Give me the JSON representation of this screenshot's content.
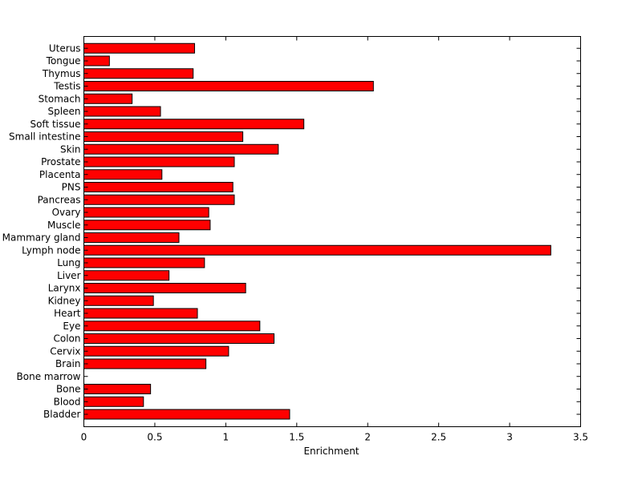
{
  "chart_data": {
    "type": "bar",
    "orientation": "horizontal",
    "xlabel": "Enrichment",
    "ylabel": "",
    "title": "",
    "xlim": [
      0,
      3.5
    ],
    "xticks": [
      "0",
      "0.5",
      "1",
      "1.5",
      "2",
      "2.5",
      "3",
      "3.5"
    ],
    "bar_color": "#ff0000",
    "categories": [
      "Bladder",
      "Blood",
      "Bone",
      "Bone marrow",
      "Brain",
      "Cervix",
      "Colon",
      "Eye",
      "Heart",
      "Kidney",
      "Larynx",
      "Liver",
      "Lung",
      "Lymph node",
      "Mammary gland",
      "Muscle",
      "Ovary",
      "Pancreas",
      "PNS",
      "Placenta",
      "Prostate",
      "Skin",
      "Small intestine",
      "Soft tissue",
      "Spleen",
      "Stomach",
      "Testis",
      "Thymus",
      "Tongue",
      "Uterus"
    ],
    "values": [
      1.45,
      0.42,
      0.47,
      0.0,
      0.86,
      1.02,
      1.34,
      1.24,
      0.8,
      0.49,
      1.14,
      0.6,
      0.85,
      3.29,
      0.67,
      0.89,
      0.88,
      1.06,
      1.05,
      0.55,
      1.06,
      1.37,
      1.12,
      1.55,
      0.54,
      0.34,
      2.04,
      0.77,
      0.18,
      0.78
    ],
    "grid": false,
    "legend": "none"
  }
}
